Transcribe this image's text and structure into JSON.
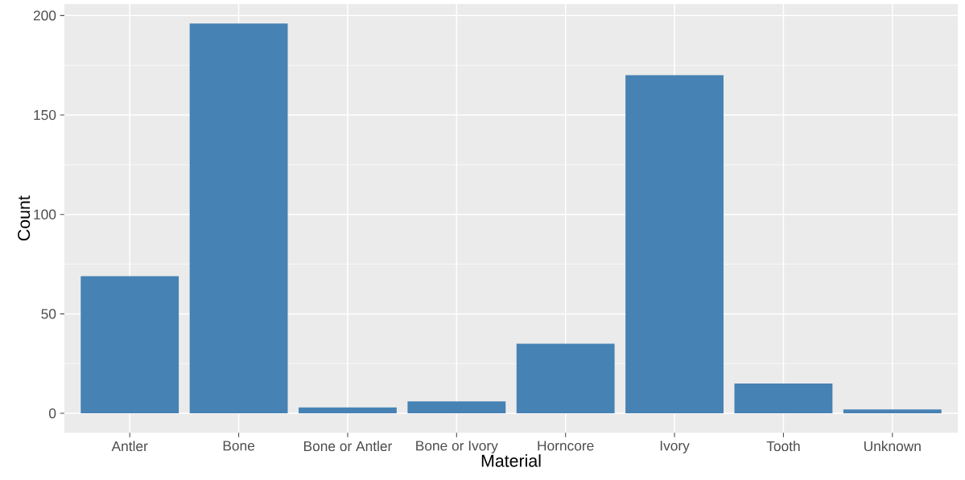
{
  "chart_data": {
    "type": "bar",
    "xlabel": "Material",
    "ylabel": "Count",
    "categories": [
      "Antler",
      "Bone",
      "Bone or Antler",
      "Bone or Ivory",
      "Horncore",
      "Ivory",
      "Tooth",
      "Unknown"
    ],
    "values": [
      69,
      196,
      3,
      6,
      35,
      170,
      15,
      2
    ],
    "color": "#4682b4",
    "ylim": [
      -9.8,
      205.8
    ],
    "yticks": [
      0,
      50,
      100,
      150,
      200
    ],
    "grid": true
  }
}
